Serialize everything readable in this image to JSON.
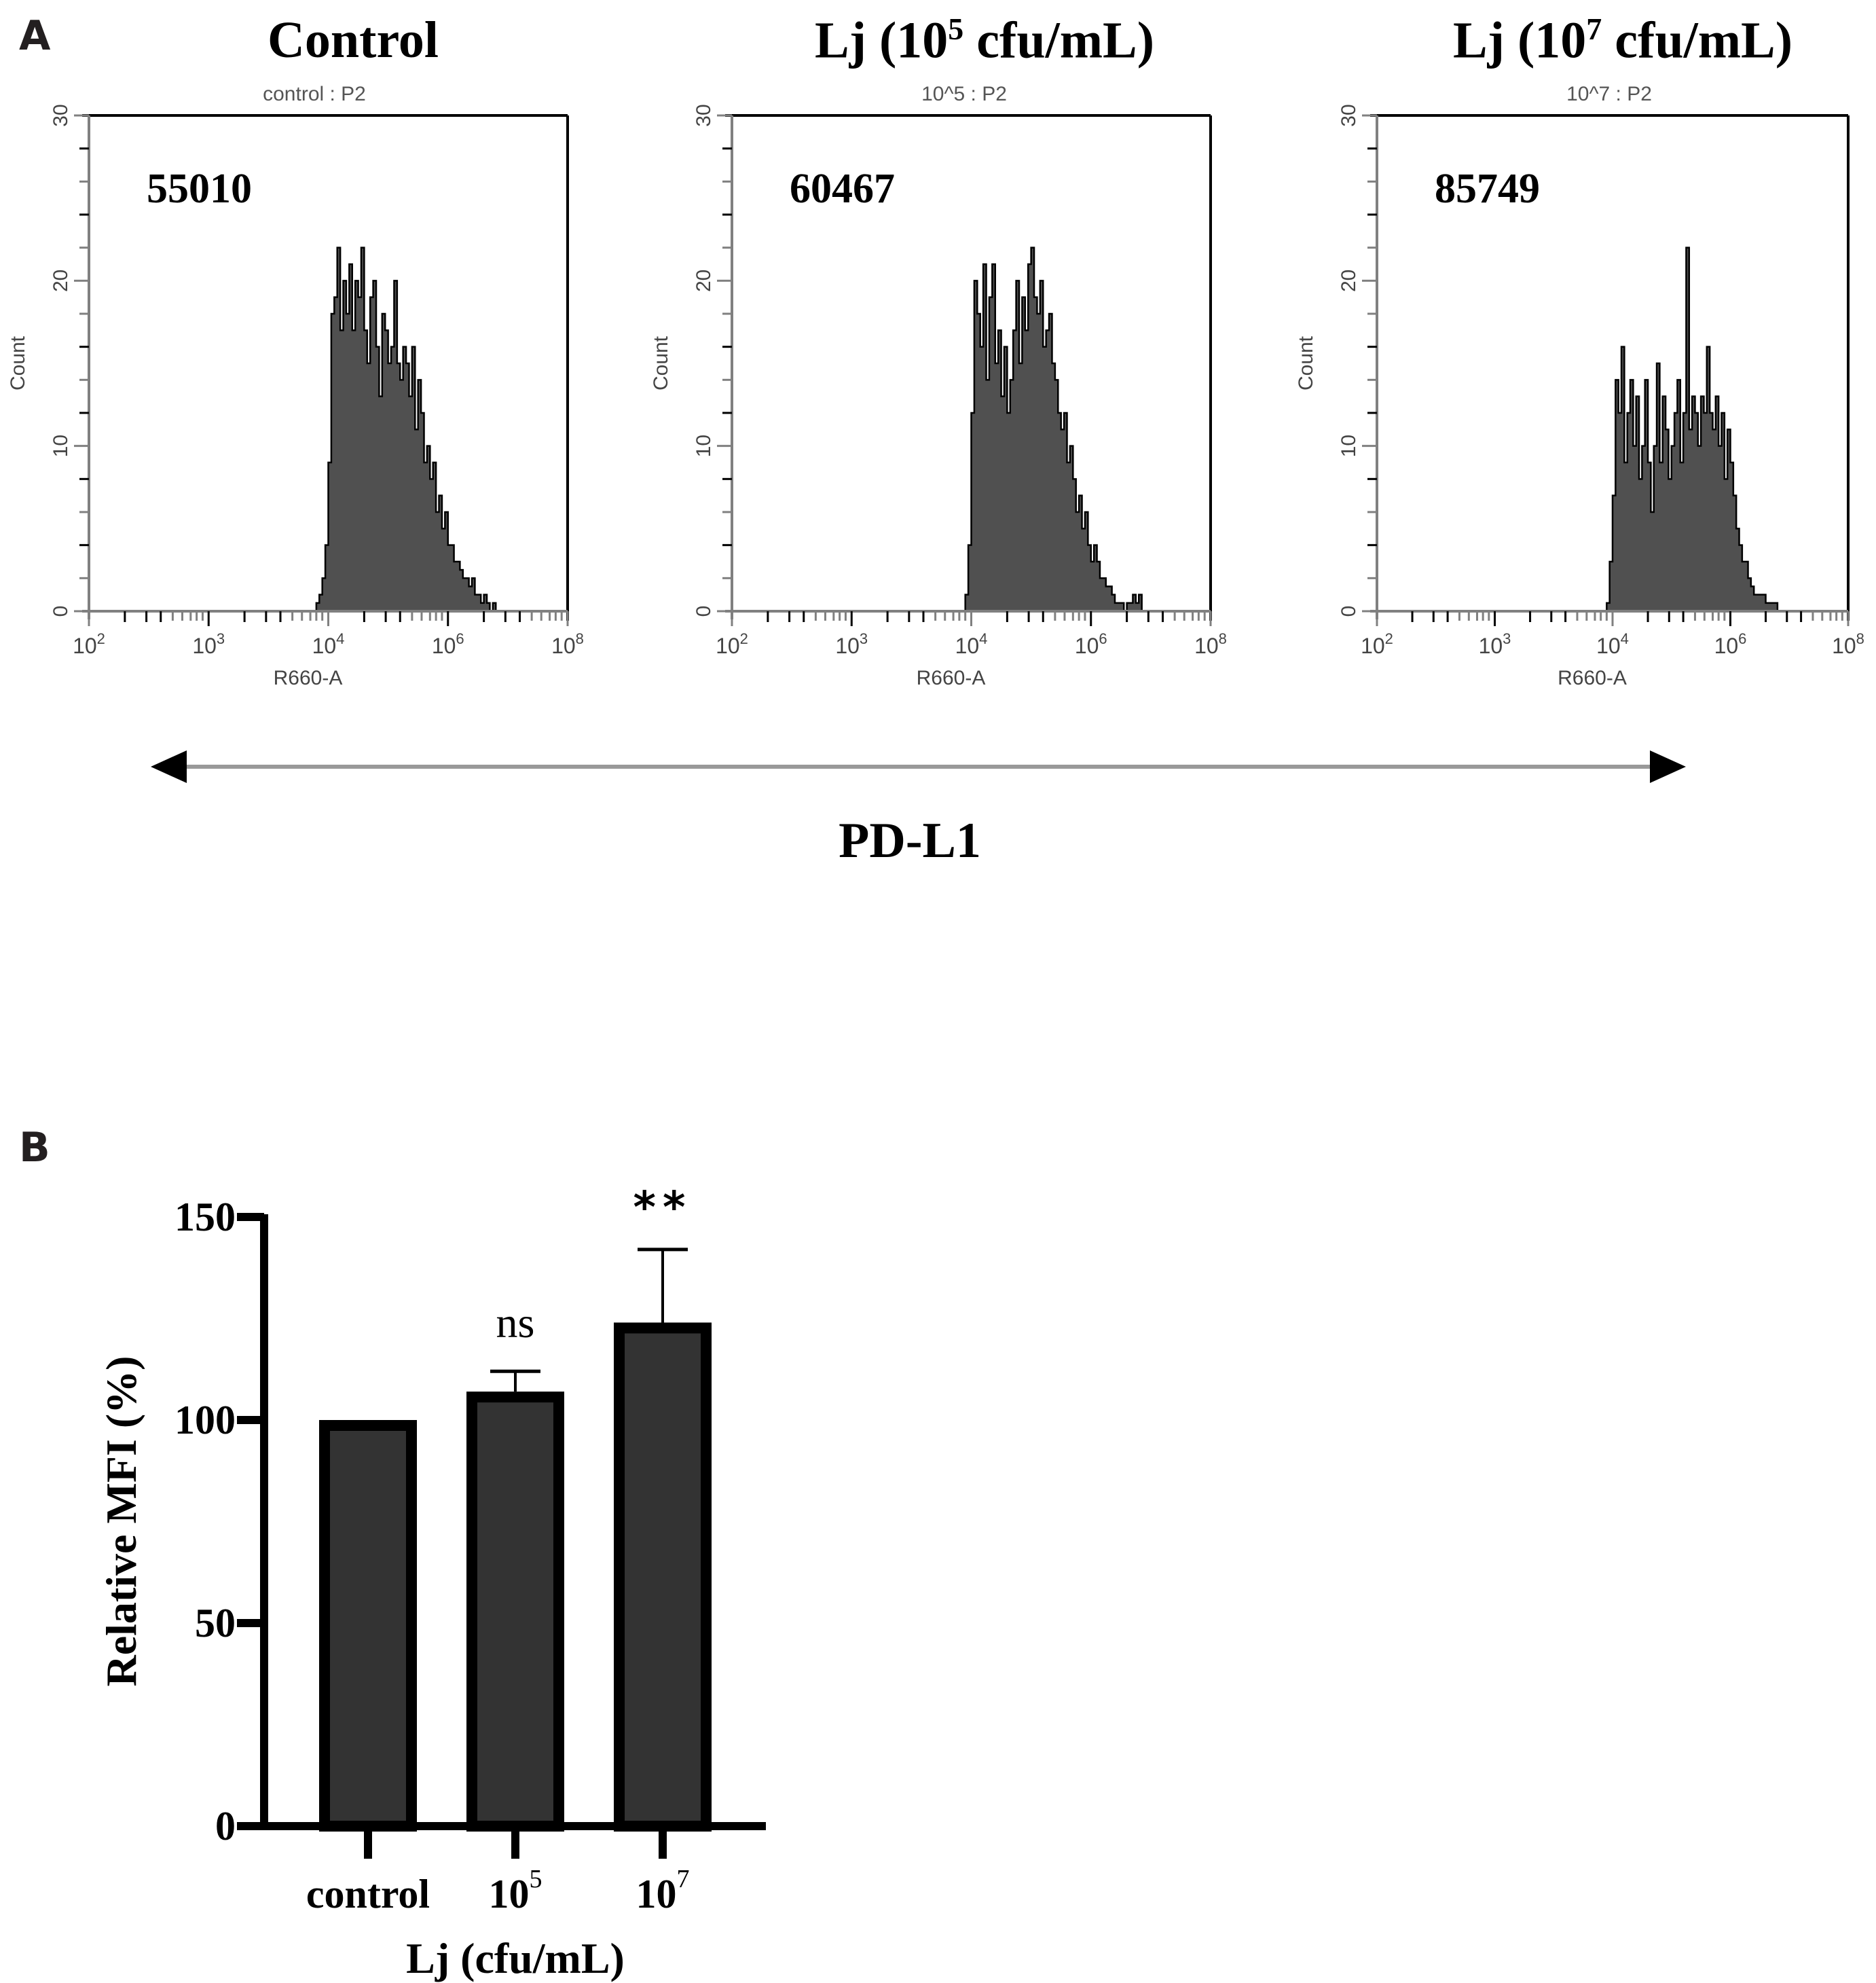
{
  "panel_a": {
    "letter": "A",
    "marker_label": "PD-L1"
  },
  "panel_b": {
    "letter": "B"
  },
  "colors": {
    "hist_fill": "#505050",
    "hist_line": "#000000",
    "axis_gray": "#808080",
    "bar_fill": "#333333",
    "bar_border": "#000000"
  },
  "chart_data": [
    {
      "type": "histogram",
      "title": "Control",
      "subtitle": "control : P2",
      "annotation": "55010",
      "xlabel": "R660-A",
      "ylabel": "Count",
      "x_tick_labels": [
        {
          "base": "10",
          "exp": "2"
        },
        {
          "base": "10",
          "exp": "3"
        },
        {
          "base": "10",
          "exp": "4"
        },
        {
          "base": "10",
          "exp": "6"
        },
        {
          "base": "10",
          "exp": "8"
        }
      ],
      "xlim": [
        0,
        4
      ],
      "y_ticks": [
        "0",
        "10",
        "20",
        "30"
      ],
      "ylim": [
        0,
        30
      ],
      "bin_start": 1.9,
      "bin_width": 0.025,
      "counts": [
        0.5,
        1,
        2,
        4,
        9,
        18,
        19,
        22,
        17,
        20,
        18,
        21,
        17,
        20,
        19,
        22,
        17,
        15,
        19,
        20,
        16,
        13,
        18,
        17,
        15,
        16,
        20,
        15,
        14,
        16,
        15,
        13,
        16,
        11,
        14,
        12,
        9,
        10,
        8,
        9,
        6,
        7,
        5,
        6,
        4,
        4,
        3,
        3,
        2.5,
        2,
        2,
        1.5,
        2,
        1,
        1,
        0.5,
        1,
        0.5,
        0,
        0.5
      ]
    },
    {
      "type": "histogram",
      "title": "Lj (10⁵ cfu/mL)",
      "title_parts": {
        "prefix": "Lj (10",
        "exp": "5",
        "suffix": " cfu/mL)"
      },
      "subtitle": "10^5 : P2",
      "annotation": "60467",
      "xlabel": "R660-A",
      "ylabel": "Count",
      "x_tick_labels": [
        {
          "base": "10",
          "exp": "2"
        },
        {
          "base": "10",
          "exp": "3"
        },
        {
          "base": "10",
          "exp": "4"
        },
        {
          "base": "10",
          "exp": "6"
        },
        {
          "base": "10",
          "exp": "8"
        }
      ],
      "xlim": [
        0,
        4
      ],
      "y_ticks": [
        "0",
        "10",
        "20",
        "30"
      ],
      "ylim": [
        0,
        30
      ],
      "bin_start": 1.95,
      "bin_width": 0.025,
      "counts": [
        1,
        4,
        12,
        20,
        18,
        16,
        21,
        14,
        19,
        21,
        15,
        17,
        13,
        16,
        12,
        14,
        17,
        20,
        15,
        19,
        17,
        21,
        22,
        19,
        18,
        20,
        16,
        17,
        18,
        15,
        14,
        12,
        11,
        12,
        9,
        10,
        8,
        6,
        7,
        5,
        6,
        4,
        3,
        4,
        3,
        2,
        2,
        1.5,
        1.5,
        1,
        0.5,
        0.5,
        0.5,
        0,
        0.5,
        0.5,
        1,
        0.5,
        1,
        0
      ]
    },
    {
      "type": "histogram",
      "title": "Lj (10⁷ cfu/mL)",
      "title_parts": {
        "prefix": "Lj (10",
        "exp": "7",
        "suffix": " cfu/mL)"
      },
      "subtitle": "10^7 : P2",
      "annotation": "85749",
      "xlabel": "R660-A",
      "ylabel": "Count",
      "x_tick_labels": [
        {
          "base": "10",
          "exp": "2"
        },
        {
          "base": "10",
          "exp": "3"
        },
        {
          "base": "10",
          "exp": "4"
        },
        {
          "base": "10",
          "exp": "6"
        },
        {
          "base": "10",
          "exp": "8"
        }
      ],
      "xlim": [
        0,
        4
      ],
      "y_ticks": [
        "0",
        "10",
        "20",
        "30"
      ],
      "ylim": [
        0,
        30
      ],
      "bin_start": 1.95,
      "bin_width": 0.025,
      "counts": [
        0.5,
        3,
        7,
        14,
        12,
        16,
        9,
        12,
        14,
        10,
        13,
        8,
        10,
        14,
        9,
        6,
        10,
        15,
        9,
        13,
        11,
        8,
        10,
        12,
        14,
        9,
        12,
        22,
        11,
        13,
        12,
        10,
        13,
        12,
        16,
        12,
        11,
        13,
        10,
        12,
        8,
        11,
        9,
        7,
        5,
        4,
        3,
        3,
        2,
        1.5,
        1,
        1,
        1,
        1,
        0.5,
        0.5,
        0.5,
        0.5,
        0,
        0
      ]
    },
    {
      "type": "bar",
      "categories": [
        {
          "base": "control",
          "exp": ""
        },
        {
          "base": "10",
          "exp": "5"
        },
        {
          "base": "10",
          "exp": "7"
        }
      ],
      "values": [
        100,
        107,
        124
      ],
      "errors": [
        0,
        5,
        18
      ],
      "significance": [
        "",
        "ns",
        "**"
      ],
      "xlabel": "Lj (cfu/mL)",
      "ylabel": "Relative MFI (%)",
      "y_ticks": [
        "0",
        "50",
        "100",
        "150"
      ],
      "ylim": [
        0,
        150
      ]
    }
  ]
}
